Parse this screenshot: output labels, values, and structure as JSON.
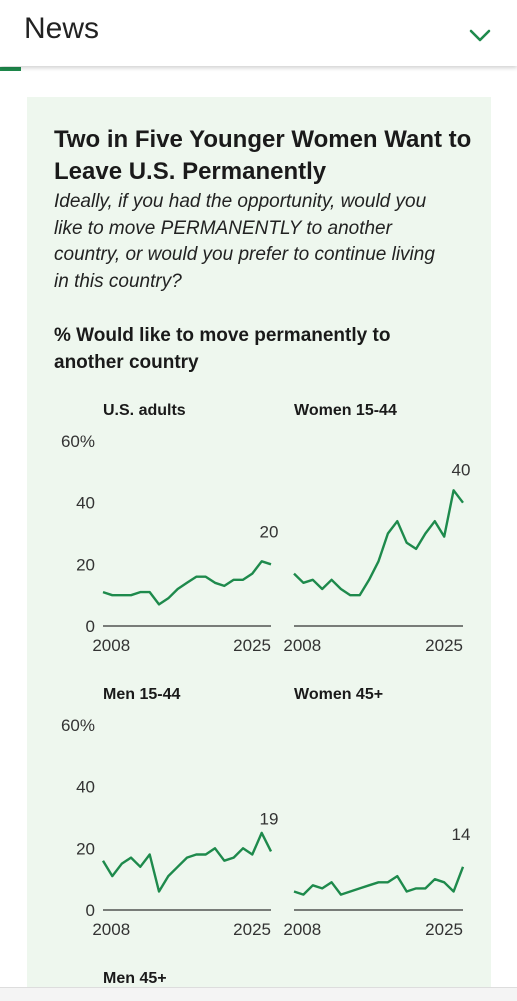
{
  "header": {
    "title": "News"
  },
  "card": {
    "title": "Two in Five Younger Women Want to Leave U.S. Permanently",
    "subtitle": "Ideally, if you had the opportunity, would you like to move PERMANENTLY to another country, or would you prefer to continue living in this country?",
    "heading": "% Would like to move permanently to another country"
  },
  "chart_data": [
    {
      "type": "line",
      "title": "U.S. adults",
      "color": "#1e8a4c",
      "x": [
        2007,
        2008,
        2009,
        2010,
        2011,
        2012,
        2013,
        2014,
        2015,
        2016,
        2017,
        2018,
        2019,
        2020,
        2021,
        2022,
        2023,
        2024,
        2025
      ],
      "values": [
        11,
        10,
        10,
        10,
        11,
        11,
        7,
        9,
        12,
        14,
        16,
        16,
        14,
        13,
        15,
        15,
        17,
        21,
        20
      ],
      "xlim": [
        2007,
        2025
      ],
      "xticks": [
        2008,
        2025
      ],
      "ylim": [
        0,
        60
      ],
      "yticks": [
        0,
        20,
        40,
        {
          "value": 60,
          "label": "60%"
        }
      ]
    },
    {
      "type": "line",
      "title": "Women 15-44",
      "color": "#1e8a4c",
      "x": [
        2007,
        2008,
        2009,
        2010,
        2011,
        2012,
        2013,
        2014,
        2015,
        2016,
        2017,
        2018,
        2019,
        2020,
        2021,
        2022,
        2023,
        2024,
        2025
      ],
      "values": [
        17,
        14,
        15,
        12,
        15,
        12,
        10,
        10,
        15,
        21,
        30,
        34,
        27,
        25,
        30,
        34,
        29,
        44,
        40
      ],
      "xlim": [
        2007,
        2025
      ],
      "xticks": [
        2008,
        2025
      ],
      "ylim": [
        0,
        60
      ]
    },
    {
      "type": "line",
      "title": "Men 15-44",
      "color": "#1e8a4c",
      "x": [
        2007,
        2008,
        2009,
        2010,
        2011,
        2012,
        2013,
        2014,
        2015,
        2016,
        2017,
        2018,
        2019,
        2020,
        2021,
        2022,
        2023,
        2024,
        2025
      ],
      "values": [
        16,
        11,
        15,
        17,
        14,
        18,
        6,
        11,
        14,
        17,
        18,
        18,
        20,
        16,
        17,
        20,
        18,
        25,
        19
      ],
      "xlim": [
        2007,
        2025
      ],
      "xticks": [
        2008,
        2025
      ],
      "ylim": [
        0,
        60
      ],
      "yticks": [
        0,
        20,
        40,
        {
          "value": 60,
          "label": "60%"
        }
      ]
    },
    {
      "type": "line",
      "title": "Women 45+",
      "color": "#1e8a4c",
      "x": [
        2007,
        2008,
        2009,
        2010,
        2011,
        2012,
        2013,
        2014,
        2015,
        2016,
        2017,
        2018,
        2019,
        2020,
        2021,
        2022,
        2023,
        2024,
        2025
      ],
      "values": [
        6,
        5,
        8,
        7,
        9,
        5,
        6,
        7,
        8,
        9,
        9,
        11,
        6,
        7,
        7,
        10,
        9,
        6,
        14
      ],
      "xlim": [
        2007,
        2025
      ],
      "xticks": [
        2008,
        2025
      ],
      "ylim": [
        0,
        60
      ]
    },
    {
      "type": "line",
      "title": "Men 45+"
    }
  ]
}
